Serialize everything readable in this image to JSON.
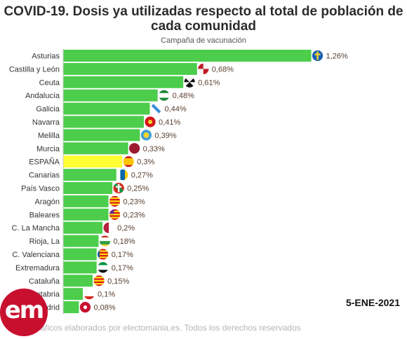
{
  "title": "COVID-19. Dosis ya utilizadas respecto al total de población de cada comunidad",
  "subtitle": "Campaña de vacunación",
  "date": "5-ENE-2021",
  "footer": "Gráficos elaborados por electomania.es. Todos los derechos reservados",
  "logo_text": "em",
  "colors": {
    "bar": "#4ccd4c",
    "highlight": "#ffff33",
    "label": "#333333",
    "value": "#5a4030"
  },
  "chart_data": {
    "type": "bar",
    "orientation": "horizontal",
    "title": "COVID-19. Dosis ya utilizadas respecto al total de población de cada comunidad",
    "subtitle": "Campaña de vacunación",
    "unit": "%",
    "xlim": [
      0,
      1.34
    ],
    "grid": false,
    "highlight": "ESPAÑA",
    "categories": [
      "Asturias",
      "Castilla y León",
      "Ceuta",
      "Andalucía",
      "Galicia",
      "Navarra",
      "Melilla",
      "Murcia",
      "ESPAÑA",
      "Canarias",
      "País Vasco",
      "Aragón",
      "Baleares",
      "C. La Mancha",
      "Rioja, La",
      "C. Valenciana",
      "Extremadura",
      "Cataluña",
      "Cantabria",
      "Madrid"
    ],
    "values": [
      1.26,
      0.68,
      0.61,
      0.48,
      0.44,
      0.41,
      0.39,
      0.33,
      0.3,
      0.27,
      0.25,
      0.23,
      0.23,
      0.2,
      0.18,
      0.17,
      0.17,
      0.15,
      0.1,
      0.08
    ],
    "value_labels": [
      "1,26%",
      "0,68%",
      "0,61%",
      "0,48%",
      "0,44%",
      "0,41%",
      "0,39%",
      "0,33%",
      "0,3%",
      "0,27%",
      "0,25%",
      "0,23%",
      "0,23%",
      "0,2%",
      "0,18%",
      "0,17%",
      "0,17%",
      "0,15%",
      "0,1%",
      "0,08%"
    ],
    "flag_icons": [
      "asturias-flag-icon",
      "castilla-y-leon-flag-icon",
      "ceuta-flag-icon",
      "andalucia-flag-icon",
      "galicia-flag-icon",
      "navarra-flag-icon",
      "melilla-flag-icon",
      "murcia-flag-icon",
      "espana-flag-icon",
      "canarias-flag-icon",
      "pais-vasco-flag-icon",
      "aragon-flag-icon",
      "baleares-flag-icon",
      "castilla-la-mancha-flag-icon",
      "la-rioja-flag-icon",
      "valencia-flag-icon",
      "extremadura-flag-icon",
      "cataluna-flag-icon",
      "cantabria-flag-icon",
      "madrid-flag-icon"
    ]
  }
}
